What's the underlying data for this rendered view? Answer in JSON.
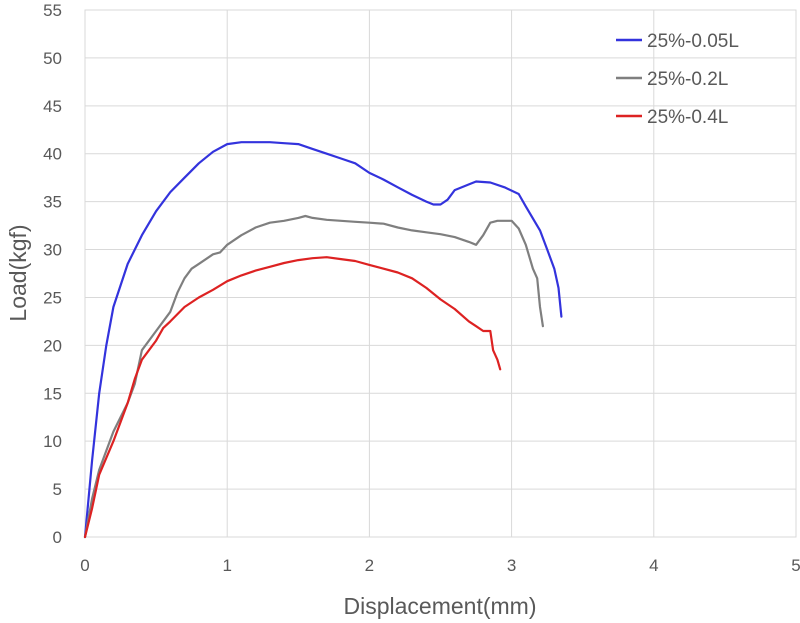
{
  "chart_data": {
    "type": "line",
    "xlabel": "Displacement(mm)",
    "ylabel": "Load(kgf)",
    "xlim": [
      0,
      5
    ],
    "ylim": [
      0,
      55
    ],
    "xticks": [
      0,
      1,
      2,
      3,
      4,
      5
    ],
    "yticks": [
      0,
      5,
      10,
      15,
      20,
      25,
      30,
      35,
      40,
      45,
      50,
      55
    ],
    "grid": true,
    "legend_position": "top-right",
    "series": [
      {
        "name": "25%-0.05L",
        "color": "#3333dd",
        "points": [
          [
            0,
            0
          ],
          [
            0.05,
            8
          ],
          [
            0.1,
            15
          ],
          [
            0.15,
            20
          ],
          [
            0.2,
            24
          ],
          [
            0.3,
            28.5
          ],
          [
            0.4,
            31.5
          ],
          [
            0.5,
            34
          ],
          [
            0.6,
            36
          ],
          [
            0.7,
            37.5
          ],
          [
            0.8,
            39
          ],
          [
            0.9,
            40.2
          ],
          [
            1.0,
            41
          ],
          [
            1.1,
            41.2
          ],
          [
            1.2,
            41.2
          ],
          [
            1.3,
            41.2
          ],
          [
            1.4,
            41.1
          ],
          [
            1.5,
            41
          ],
          [
            1.6,
            40.5
          ],
          [
            1.7,
            40
          ],
          [
            1.8,
            39.5
          ],
          [
            1.9,
            39
          ],
          [
            2.0,
            38
          ],
          [
            2.1,
            37.3
          ],
          [
            2.2,
            36.5
          ],
          [
            2.3,
            35.7
          ],
          [
            2.4,
            35
          ],
          [
            2.45,
            34.7
          ],
          [
            2.5,
            34.7
          ],
          [
            2.55,
            35.2
          ],
          [
            2.6,
            36.2
          ],
          [
            2.7,
            36.8
          ],
          [
            2.75,
            37.1
          ],
          [
            2.85,
            37
          ],
          [
            2.95,
            36.5
          ],
          [
            3.05,
            35.8
          ],
          [
            3.1,
            34.5
          ],
          [
            3.2,
            32
          ],
          [
            3.25,
            30
          ],
          [
            3.3,
            28
          ],
          [
            3.33,
            26
          ],
          [
            3.35,
            23
          ]
        ]
      },
      {
        "name": "25%-0.2L",
        "color": "#7f7f7f",
        "points": [
          [
            0,
            0
          ],
          [
            0.05,
            4
          ],
          [
            0.1,
            7
          ],
          [
            0.2,
            11
          ],
          [
            0.3,
            14
          ],
          [
            0.35,
            16
          ],
          [
            0.4,
            19.5
          ],
          [
            0.5,
            21.5
          ],
          [
            0.6,
            23.5
          ],
          [
            0.65,
            25.5
          ],
          [
            0.7,
            27
          ],
          [
            0.75,
            28
          ],
          [
            0.8,
            28.5
          ],
          [
            0.9,
            29.5
          ],
          [
            0.95,
            29.7
          ],
          [
            1.0,
            30.5
          ],
          [
            1.1,
            31.5
          ],
          [
            1.2,
            32.3
          ],
          [
            1.3,
            32.8
          ],
          [
            1.4,
            33
          ],
          [
            1.5,
            33.3
          ],
          [
            1.55,
            33.5
          ],
          [
            1.6,
            33.3
          ],
          [
            1.7,
            33.1
          ],
          [
            1.8,
            33
          ],
          [
            1.9,
            32.9
          ],
          [
            2.0,
            32.8
          ],
          [
            2.1,
            32.7
          ],
          [
            2.2,
            32.3
          ],
          [
            2.3,
            32
          ],
          [
            2.4,
            31.8
          ],
          [
            2.5,
            31.6
          ],
          [
            2.6,
            31.3
          ],
          [
            2.7,
            30.8
          ],
          [
            2.75,
            30.5
          ],
          [
            2.8,
            31.5
          ],
          [
            2.85,
            32.8
          ],
          [
            2.9,
            33
          ],
          [
            2.95,
            33
          ],
          [
            3.0,
            33
          ],
          [
            3.05,
            32.2
          ],
          [
            3.1,
            30.5
          ],
          [
            3.15,
            28
          ],
          [
            3.18,
            27
          ],
          [
            3.2,
            24
          ],
          [
            3.22,
            22
          ]
        ]
      },
      {
        "name": "25%-0.4L",
        "color": "#dd2222",
        "points": [
          [
            0,
            0
          ],
          [
            0.05,
            3
          ],
          [
            0.1,
            6.5
          ],
          [
            0.2,
            10
          ],
          [
            0.25,
            12
          ],
          [
            0.3,
            14
          ],
          [
            0.35,
            16.5
          ],
          [
            0.4,
            18.5
          ],
          [
            0.5,
            20.5
          ],
          [
            0.55,
            21.8
          ],
          [
            0.6,
            22.5
          ],
          [
            0.7,
            24
          ],
          [
            0.8,
            25
          ],
          [
            0.9,
            25.8
          ],
          [
            1.0,
            26.7
          ],
          [
            1.1,
            27.3
          ],
          [
            1.2,
            27.8
          ],
          [
            1.3,
            28.2
          ],
          [
            1.4,
            28.6
          ],
          [
            1.5,
            28.9
          ],
          [
            1.6,
            29.1
          ],
          [
            1.7,
            29.2
          ],
          [
            1.8,
            29
          ],
          [
            1.9,
            28.8
          ],
          [
            2.0,
            28.4
          ],
          [
            2.1,
            28
          ],
          [
            2.2,
            27.6
          ],
          [
            2.3,
            27
          ],
          [
            2.4,
            26
          ],
          [
            2.5,
            24.8
          ],
          [
            2.6,
            23.8
          ],
          [
            2.7,
            22.5
          ],
          [
            2.75,
            22
          ],
          [
            2.8,
            21.5
          ],
          [
            2.85,
            21.5
          ],
          [
            2.87,
            19.5
          ],
          [
            2.9,
            18.5
          ],
          [
            2.92,
            17.5
          ]
        ]
      }
    ]
  }
}
